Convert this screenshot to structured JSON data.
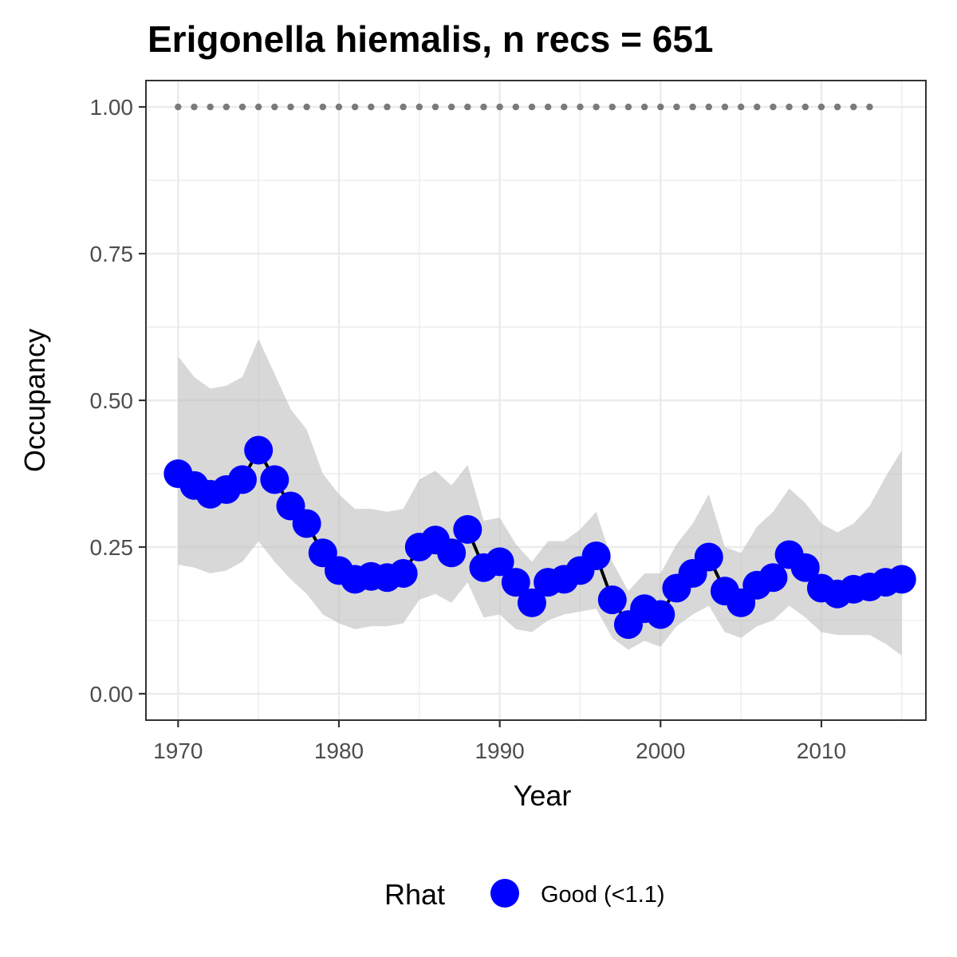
{
  "chart_data": {
    "type": "line",
    "title": "Erigonella hiemalis, n recs = 651",
    "xlabel": "Year",
    "ylabel": "Occupancy",
    "xlim": [
      1968,
      2016.5
    ],
    "ylim": [
      -0.045,
      1.045
    ],
    "x_major_ticks": [
      1970,
      1980,
      1990,
      2000,
      2010
    ],
    "x_tick_labels": [
      "1970",
      "1980",
      "1990",
      "2000",
      "2010"
    ],
    "x_minor_ticks": [
      1975,
      1985,
      1995,
      2005,
      2015
    ],
    "y_major_ticks": [
      0,
      0.25,
      0.5,
      0.75,
      1
    ],
    "y_tick_labels": [
      "0.00",
      "0.25",
      "0.50",
      "0.75",
      "1.00"
    ],
    "y_minor_ticks": [
      0.125,
      0.375,
      0.625,
      0.875
    ],
    "grid": true,
    "colors": {
      "point": "#0000ff",
      "line": "#000000",
      "ribbon": "#bebebe",
      "dotted": "#7a7a7a",
      "grid": "#ebebeb",
      "panel_border": "#333333"
    },
    "legend": {
      "position": "bottom",
      "title": "Rhat",
      "items": [
        {
          "label": "Good (<1.1)",
          "color": "#0000ff"
        }
      ]
    },
    "x": [
      1970,
      1971,
      1972,
      1973,
      1974,
      1975,
      1976,
      1977,
      1978,
      1979,
      1980,
      1981,
      1982,
      1983,
      1984,
      1985,
      1986,
      1987,
      1988,
      1989,
      1990,
      1991,
      1992,
      1993,
      1994,
      1995,
      1996,
      1997,
      1998,
      1999,
      2000,
      2001,
      2002,
      2003,
      2004,
      2005,
      2006,
      2007,
      2008,
      2009,
      2010,
      2011,
      2012,
      2013,
      2014,
      2015
    ],
    "series": [
      {
        "values": [
          0.375,
          0.355,
          0.34,
          0.348,
          0.365,
          0.415,
          0.365,
          0.32,
          0.29,
          0.24,
          0.21,
          0.195,
          0.2,
          0.198,
          0.205,
          0.25,
          0.262,
          0.24,
          0.28,
          0.215,
          0.225,
          0.19,
          0.155,
          0.19,
          0.195,
          0.21,
          0.235,
          0.16,
          0.118,
          0.145,
          0.135,
          0.18,
          0.205,
          0.233,
          0.175,
          0.155,
          0.185,
          0.198,
          0.237,
          0.215,
          0.18,
          0.17,
          0.178,
          0.182,
          0.19,
          0.195
        ],
        "lower": [
          0.22,
          0.215,
          0.205,
          0.21,
          0.225,
          0.26,
          0.225,
          0.195,
          0.17,
          0.135,
          0.12,
          0.11,
          0.115,
          0.115,
          0.12,
          0.16,
          0.17,
          0.155,
          0.19,
          0.13,
          0.135,
          0.11,
          0.105,
          0.125,
          0.135,
          0.14,
          0.145,
          0.095,
          0.075,
          0.09,
          0.08,
          0.115,
          0.135,
          0.15,
          0.105,
          0.095,
          0.115,
          0.125,
          0.15,
          0.13,
          0.105,
          0.1,
          0.1,
          0.1,
          0.085,
          0.065
        ],
        "upper": [
          0.575,
          0.54,
          0.52,
          0.525,
          0.54,
          0.605,
          0.545,
          0.485,
          0.45,
          0.375,
          0.34,
          0.315,
          0.315,
          0.31,
          0.315,
          0.365,
          0.38,
          0.355,
          0.39,
          0.295,
          0.3,
          0.255,
          0.225,
          0.26,
          0.26,
          0.28,
          0.31,
          0.225,
          0.175,
          0.205,
          0.205,
          0.255,
          0.29,
          0.34,
          0.25,
          0.24,
          0.285,
          0.31,
          0.35,
          0.325,
          0.29,
          0.275,
          0.29,
          0.32,
          0.37,
          0.415
        ]
      }
    ],
    "reference_points": {
      "x": [
        1970,
        1971,
        1972,
        1973,
        1974,
        1975,
        1976,
        1977,
        1978,
        1979,
        1980,
        1981,
        1982,
        1983,
        1984,
        1985,
        1986,
        1987,
        1988,
        1989,
        1990,
        1991,
        1992,
        1993,
        1994,
        1995,
        1996,
        1997,
        1998,
        1999,
        2000,
        2001,
        2002,
        2003,
        2004,
        2005,
        2006,
        2007,
        2008,
        2009,
        2010,
        2011,
        2012,
        2013
      ],
      "y": 1.0
    }
  }
}
